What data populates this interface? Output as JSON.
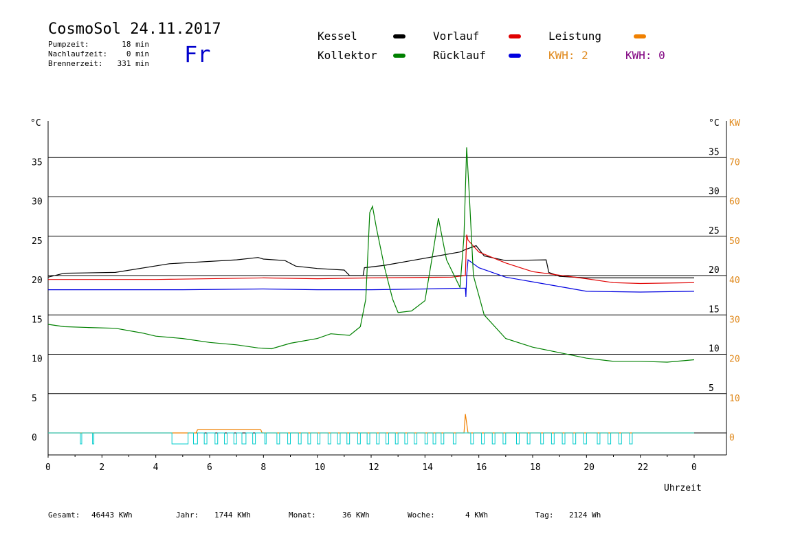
{
  "header": {
    "title": "CosmoSol 24.11.2017",
    "weekday": "Fr",
    "info": [
      {
        "label": "Pumpzeit:",
        "value": "18 min"
      },
      {
        "label": "Nachlaufzeit:",
        "value": "0 min"
      },
      {
        "label": "Brennerzeit:",
        "value": "331 min"
      }
    ]
  },
  "legend": {
    "items": [
      {
        "label": "Kessel",
        "color": "#000000"
      },
      {
        "label": "Vorlauf",
        "color": "#e00000"
      },
      {
        "label": "Leistung",
        "color": "#f08000"
      },
      {
        "label": "Kollektor",
        "color": "#008000"
      },
      {
        "label": "Rücklauf",
        "color": "#0000e0"
      }
    ],
    "kwh": [
      {
        "label": "KWH: 2",
        "color": "#e08a1e"
      },
      {
        "label": "KWH: 0",
        "color": "#800080"
      }
    ]
  },
  "footer": [
    {
      "label": "Gesamt:",
      "value": "46443 KWh"
    },
    {
      "label": "Jahr:",
      "value": "1744 KWh"
    },
    {
      "label": "Monat:",
      "value": "36 KWh"
    },
    {
      "label": "Woche:",
      "value": "4 KWh"
    },
    {
      "label": "Tag:",
      "value": "2124 Wh"
    }
  ],
  "chart_data": {
    "type": "line",
    "xlabel": "Uhrzeit",
    "ylabel_left": "°C",
    "ylabel_right": "°C",
    "ylabel_right2": "KW",
    "xlim": [
      0,
      24
    ],
    "ylim": [
      -3,
      40
    ],
    "x_ticks": [
      "0",
      "2",
      "4",
      "6",
      "8",
      "10",
      "12",
      "14",
      "16",
      "18",
      "20",
      "22",
      "0"
    ],
    "y_ticks_left": [
      "0",
      "5",
      "10",
      "15",
      "20",
      "25",
      "30",
      "35"
    ],
    "y_ticks_right": [
      "5",
      "10",
      "15",
      "20",
      "25",
      "30",
      "35"
    ],
    "y_ticks_kw": [
      "0",
      "10",
      "20",
      "30",
      "40",
      "50",
      "60",
      "70"
    ],
    "grid": "horizontal",
    "series": [
      {
        "name": "Kessel",
        "color": "#000000",
        "points": [
          [
            0,
            19.8
          ],
          [
            0.6,
            20.3
          ],
          [
            2.5,
            20.4
          ],
          [
            4.5,
            21.5
          ],
          [
            7,
            22
          ],
          [
            7.8,
            22.3
          ],
          [
            8,
            22.1
          ],
          [
            8.8,
            21.9
          ],
          [
            9.2,
            21.2
          ],
          [
            10,
            20.9
          ],
          [
            11,
            20.7
          ],
          [
            11.2,
            20
          ],
          [
            11.7,
            20.0
          ],
          [
            11.75,
            21.0
          ],
          [
            12.5,
            21.3
          ],
          [
            13.5,
            21.9
          ],
          [
            15.3,
            23.0
          ],
          [
            15.5,
            23.3
          ],
          [
            15.9,
            23.8
          ],
          [
            16.2,
            22.5
          ],
          [
            17,
            21.9
          ],
          [
            18.5,
            22.0
          ],
          [
            18.6,
            20.4
          ],
          [
            19,
            19.9
          ],
          [
            20,
            19.7
          ],
          [
            24,
            19.7
          ]
        ]
      },
      {
        "name": "Vorlauf",
        "color": "#e00000",
        "points": [
          [
            0,
            19.5
          ],
          [
            4,
            19.5
          ],
          [
            8,
            19.7
          ],
          [
            10,
            19.6
          ],
          [
            12,
            19.7
          ],
          [
            15,
            19.8
          ],
          [
            15.5,
            20.0
          ],
          [
            15.55,
            25.2
          ],
          [
            15.6,
            24.5
          ],
          [
            16,
            23
          ],
          [
            17,
            21.6
          ],
          [
            18,
            20.5
          ],
          [
            20,
            19.6
          ],
          [
            21,
            19.1
          ],
          [
            22,
            19.0
          ],
          [
            24,
            19.1
          ]
        ]
      },
      {
        "name": "Rücklauf",
        "color": "#0000e0",
        "points": [
          [
            0,
            18.2
          ],
          [
            2,
            18.2
          ],
          [
            5,
            18.2
          ],
          [
            8,
            18.3
          ],
          [
            10,
            18.2
          ],
          [
            12,
            18.2
          ],
          [
            14,
            18.3
          ],
          [
            15.5,
            18.4
          ],
          [
            15.52,
            17.3
          ],
          [
            15.55,
            20
          ],
          [
            15.6,
            22.0
          ],
          [
            16,
            21.0
          ],
          [
            17,
            19.8
          ],
          [
            19,
            18.6
          ],
          [
            20,
            18.0
          ],
          [
            22,
            17.9
          ],
          [
            24,
            18.0
          ]
        ]
      },
      {
        "name": "Kollektor",
        "color": "#008000",
        "points": [
          [
            0,
            13.8
          ],
          [
            0.6,
            13.5
          ],
          [
            1.5,
            13.4
          ],
          [
            2.5,
            13.3
          ],
          [
            3.5,
            12.7
          ],
          [
            4,
            12.3
          ],
          [
            5,
            12.0
          ],
          [
            6,
            11.5
          ],
          [
            7,
            11.2
          ],
          [
            7.8,
            10.8
          ],
          [
            8.3,
            10.7
          ],
          [
            9,
            11.4
          ],
          [
            10,
            12.0
          ],
          [
            10.5,
            12.6
          ],
          [
            11.2,
            12.4
          ],
          [
            11.6,
            13.5
          ],
          [
            11.8,
            17
          ],
          [
            11.95,
            28.0
          ],
          [
            12.05,
            28.8
          ],
          [
            12.2,
            26
          ],
          [
            12.5,
            21
          ],
          [
            12.8,
            17
          ],
          [
            13,
            15.3
          ],
          [
            13.5,
            15.5
          ],
          [
            14,
            16.8
          ],
          [
            14.3,
            23
          ],
          [
            14.5,
            27.3
          ],
          [
            14.8,
            22
          ],
          [
            15.3,
            18.5
          ],
          [
            15.45,
            25
          ],
          [
            15.55,
            36.3
          ],
          [
            15.65,
            30
          ],
          [
            15.8,
            20
          ],
          [
            16.2,
            15
          ],
          [
            17,
            12.0
          ],
          [
            18,
            10.9
          ],
          [
            19,
            10.2
          ],
          [
            20,
            9.5
          ],
          [
            21,
            9.1
          ],
          [
            22,
            9.1
          ],
          [
            23,
            9.0
          ],
          [
            24,
            9.3
          ]
        ]
      },
      {
        "name": "Leistung",
        "color": "#f08000",
        "points": [
          [
            0,
            0
          ],
          [
            5.5,
            0
          ],
          [
            5.55,
            0.4
          ],
          [
            7.9,
            0.4
          ],
          [
            7.95,
            0
          ],
          [
            15.45,
            0
          ],
          [
            15.5,
            2.4
          ],
          [
            15.6,
            0
          ],
          [
            24,
            0
          ]
        ]
      }
    ]
  }
}
